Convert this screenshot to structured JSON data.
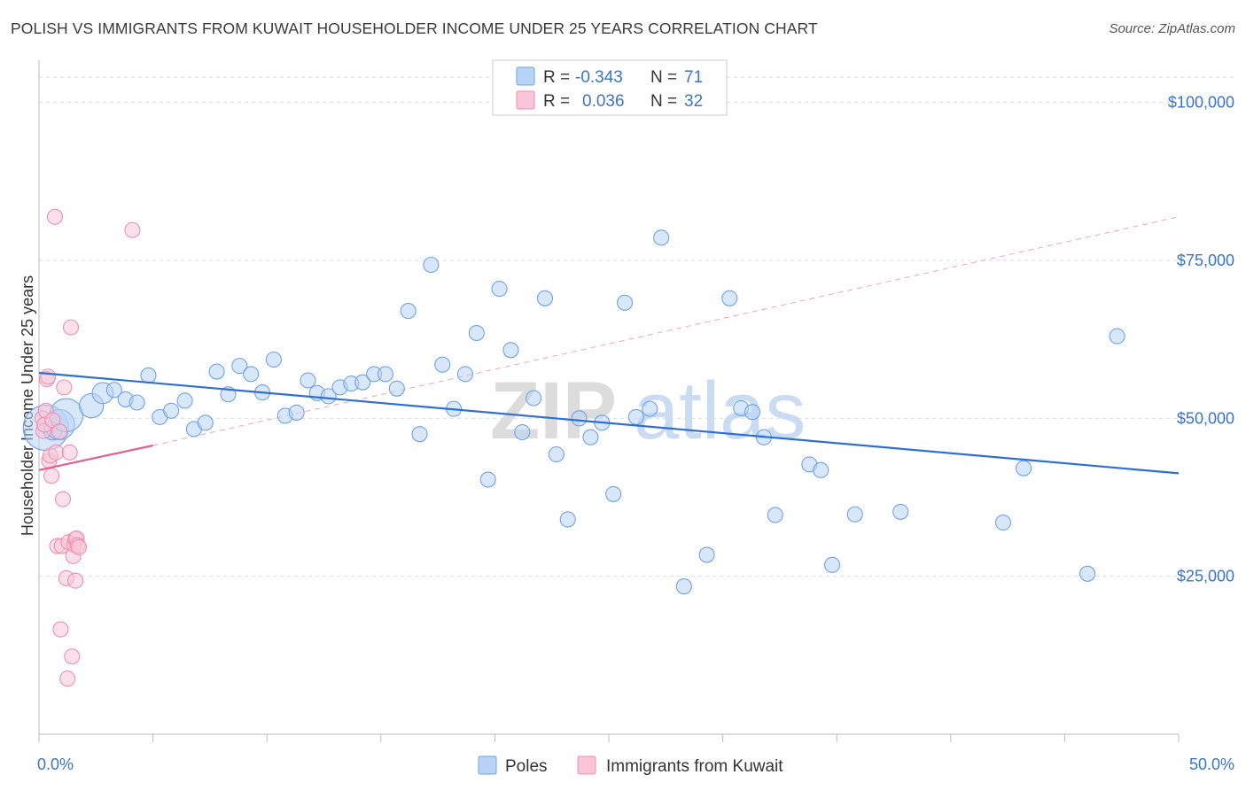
{
  "title": "POLISH VS IMMIGRANTS FROM KUWAIT HOUSEHOLDER INCOME UNDER 25 YEARS CORRELATION CHART",
  "source": "Source: ZipAtlas.com",
  "watermark": {
    "zip": "ZIP",
    "atlas": "atlas"
  },
  "colors": {
    "poles": "#6fa3e6",
    "poles_fill": "#b9d3f5",
    "poles_line": "#2f6fd1",
    "kuwait": "#ef8fb0",
    "kuwait_fill": "#f8c6d7",
    "kuwait_line": "#e0628b",
    "axis_text": "#3b74c9",
    "grid": "#dddddd"
  },
  "stats_legend": {
    "rows": [
      {
        "r_label": "R =",
        "r_value": "-0.343",
        "n_label": "N =",
        "n_value": "71"
      },
      {
        "r_label": "R =",
        "r_value": "0.036",
        "n_label": "N =",
        "n_value": "32"
      }
    ]
  },
  "chart_data": {
    "type": "scatter",
    "title": "POLISH VS IMMIGRANTS FROM KUWAIT HOUSEHOLDER INCOME UNDER 25 YEARS CORRELATION CHART",
    "xlabel": "",
    "ylabel": "Householder Income Under 25 years",
    "xlim": [
      0,
      50
    ],
    "ylim": [
      0,
      105000
    ],
    "x_tick_labels": [
      "0.0%",
      "50.0%"
    ],
    "y_ticks": [
      25000,
      50000,
      75000,
      100000
    ],
    "y_tick_labels": [
      "$25,000",
      "$50,000",
      "$75,000",
      "$100,000"
    ],
    "grid": true,
    "legend_position": "bottom-center",
    "series": [
      {
        "name": "Poles",
        "r": -0.343,
        "n": 71,
        "trend": {
          "x": [
            0,
            50
          ],
          "y": [
            57200,
            41300
          ]
        },
        "points": [
          {
            "x": 0.3,
            "y": 48500,
            "s": 3
          },
          {
            "x": 0.6,
            "y": 48000,
            "s": 1.2
          },
          {
            "x": 0.9,
            "y": 49000,
            "s": 2
          },
          {
            "x": 1.2,
            "y": 50500,
            "s": 2.2
          },
          {
            "x": 2.3,
            "y": 52000,
            "s": 1.6
          },
          {
            "x": 2.8,
            "y": 54000,
            "s": 1.4
          },
          {
            "x": 3.3,
            "y": 54500,
            "s": 1
          },
          {
            "x": 3.8,
            "y": 53000,
            "s": 1
          },
          {
            "x": 4.3,
            "y": 52500,
            "s": 1
          },
          {
            "x": 4.8,
            "y": 56800,
            "s": 1
          },
          {
            "x": 5.3,
            "y": 50200,
            "s": 1
          },
          {
            "x": 5.8,
            "y": 51200,
            "s": 1
          },
          {
            "x": 6.4,
            "y": 52800,
            "s": 1
          },
          {
            "x": 6.8,
            "y": 48300,
            "s": 1
          },
          {
            "x": 7.3,
            "y": 49300,
            "s": 1
          },
          {
            "x": 7.8,
            "y": 57400,
            "s": 1
          },
          {
            "x": 8.3,
            "y": 53800,
            "s": 1
          },
          {
            "x": 8.8,
            "y": 58300,
            "s": 1
          },
          {
            "x": 9.3,
            "y": 57000,
            "s": 1
          },
          {
            "x": 9.8,
            "y": 54100,
            "s": 1
          },
          {
            "x": 10.3,
            "y": 59300,
            "s": 1
          },
          {
            "x": 10.8,
            "y": 50400,
            "s": 1
          },
          {
            "x": 11.3,
            "y": 50900,
            "s": 1
          },
          {
            "x": 11.8,
            "y": 56000,
            "s": 1
          },
          {
            "x": 12.2,
            "y": 54000,
            "s": 1
          },
          {
            "x": 12.7,
            "y": 53500,
            "s": 1
          },
          {
            "x": 13.2,
            "y": 54900,
            "s": 1
          },
          {
            "x": 13.7,
            "y": 55500,
            "s": 1
          },
          {
            "x": 14.2,
            "y": 55700,
            "s": 1
          },
          {
            "x": 14.7,
            "y": 57000,
            "s": 1
          },
          {
            "x": 15.2,
            "y": 57000,
            "s": 1
          },
          {
            "x": 15.7,
            "y": 54700,
            "s": 1
          },
          {
            "x": 16.2,
            "y": 67000,
            "s": 1
          },
          {
            "x": 16.7,
            "y": 47500,
            "s": 1
          },
          {
            "x": 17.2,
            "y": 74300,
            "s": 1
          },
          {
            "x": 17.7,
            "y": 58500,
            "s": 1
          },
          {
            "x": 18.2,
            "y": 51500,
            "s": 1
          },
          {
            "x": 18.7,
            "y": 57000,
            "s": 1
          },
          {
            "x": 19.2,
            "y": 63500,
            "s": 1
          },
          {
            "x": 19.7,
            "y": 40300,
            "s": 1
          },
          {
            "x": 20.2,
            "y": 70500,
            "s": 1
          },
          {
            "x": 20.7,
            "y": 60800,
            "s": 1
          },
          {
            "x": 21.2,
            "y": 47800,
            "s": 1
          },
          {
            "x": 21.7,
            "y": 53200,
            "s": 1
          },
          {
            "x": 22.2,
            "y": 69000,
            "s": 1
          },
          {
            "x": 22.7,
            "y": 44300,
            "s": 1
          },
          {
            "x": 23.2,
            "y": 34000,
            "s": 1
          },
          {
            "x": 23.7,
            "y": 50000,
            "s": 1
          },
          {
            "x": 24.2,
            "y": 47000,
            "s": 1
          },
          {
            "x": 24.7,
            "y": 49300,
            "s": 1
          },
          {
            "x": 25.2,
            "y": 38000,
            "s": 1
          },
          {
            "x": 25.7,
            "y": 68300,
            "s": 1
          },
          {
            "x": 26.2,
            "y": 50200,
            "s": 1
          },
          {
            "x": 26.8,
            "y": 51500,
            "s": 1
          },
          {
            "x": 27.3,
            "y": 78600,
            "s": 1
          },
          {
            "x": 28.3,
            "y": 23400,
            "s": 1
          },
          {
            "x": 29.3,
            "y": 28400,
            "s": 1
          },
          {
            "x": 30.3,
            "y": 69000,
            "s": 1
          },
          {
            "x": 30.8,
            "y": 51600,
            "s": 1
          },
          {
            "x": 31.3,
            "y": 51000,
            "s": 1
          },
          {
            "x": 31.8,
            "y": 47000,
            "s": 1
          },
          {
            "x": 32.3,
            "y": 34700,
            "s": 1
          },
          {
            "x": 33.8,
            "y": 42700,
            "s": 1
          },
          {
            "x": 34.3,
            "y": 41800,
            "s": 1
          },
          {
            "x": 34.8,
            "y": 26800,
            "s": 1
          },
          {
            "x": 35.8,
            "y": 34800,
            "s": 1
          },
          {
            "x": 37.8,
            "y": 35200,
            "s": 1
          },
          {
            "x": 42.3,
            "y": 33500,
            "s": 1
          },
          {
            "x": 43.2,
            "y": 42100,
            "s": 1
          },
          {
            "x": 46.0,
            "y": 25400,
            "s": 1
          },
          {
            "x": 47.3,
            "y": 63000,
            "s": 1
          }
        ]
      },
      {
        "name": "Immigrants from Kuwait",
        "r": 0.036,
        "n": 32,
        "trend": {
          "x": [
            0,
            5
          ],
          "y": [
            41800,
            45700
          ]
        },
        "trend_extended": {
          "x": [
            5,
            50
          ],
          "y": [
            45700,
            81900
          ]
        },
        "points": [
          {
            "x": 0.15,
            "y": 50000,
            "s": 1
          },
          {
            "x": 0.2,
            "y": 48000,
            "s": 1
          },
          {
            "x": 0.25,
            "y": 49000,
            "s": 1
          },
          {
            "x": 0.3,
            "y": 51200,
            "s": 1
          },
          {
            "x": 0.35,
            "y": 56200,
            "s": 1
          },
          {
            "x": 0.4,
            "y": 56600,
            "s": 1
          },
          {
            "x": 0.45,
            "y": 43300,
            "s": 1
          },
          {
            "x": 0.5,
            "y": 44100,
            "s": 1
          },
          {
            "x": 0.55,
            "y": 40900,
            "s": 1
          },
          {
            "x": 0.6,
            "y": 49700,
            "s": 1
          },
          {
            "x": 0.7,
            "y": 81900,
            "s": 1
          },
          {
            "x": 0.75,
            "y": 44600,
            "s": 1
          },
          {
            "x": 0.8,
            "y": 29800,
            "s": 1
          },
          {
            "x": 0.9,
            "y": 47900,
            "s": 1
          },
          {
            "x": 0.95,
            "y": 16600,
            "s": 1
          },
          {
            "x": 1.0,
            "y": 29800,
            "s": 1
          },
          {
            "x": 1.05,
            "y": 37200,
            "s": 1
          },
          {
            "x": 1.1,
            "y": 54900,
            "s": 1
          },
          {
            "x": 1.2,
            "y": 24700,
            "s": 1
          },
          {
            "x": 1.25,
            "y": 8800,
            "s": 1
          },
          {
            "x": 1.3,
            "y": 30400,
            "s": 1
          },
          {
            "x": 1.35,
            "y": 44600,
            "s": 1
          },
          {
            "x": 1.4,
            "y": 64400,
            "s": 1
          },
          {
            "x": 1.45,
            "y": 12300,
            "s": 1
          },
          {
            "x": 1.5,
            "y": 28200,
            "s": 1
          },
          {
            "x": 1.55,
            "y": 30000,
            "s": 1
          },
          {
            "x": 1.6,
            "y": 30900,
            "s": 1
          },
          {
            "x": 1.65,
            "y": 31000,
            "s": 1
          },
          {
            "x": 1.7,
            "y": 29900,
            "s": 1
          },
          {
            "x": 1.75,
            "y": 29600,
            "s": 1
          },
          {
            "x": 1.6,
            "y": 24300,
            "s": 1
          },
          {
            "x": 4.1,
            "y": 79800,
            "s": 1
          }
        ]
      }
    ]
  }
}
